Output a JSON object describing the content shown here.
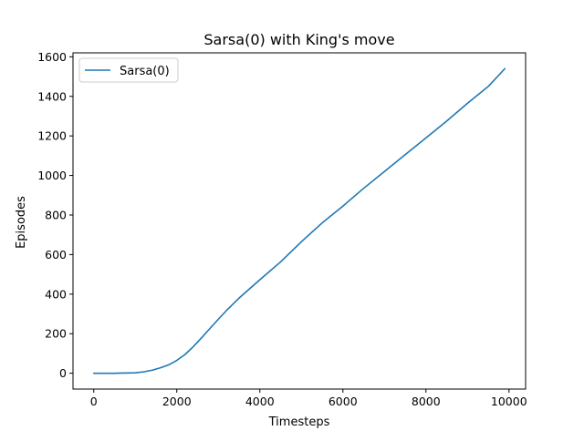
{
  "chart_data": {
    "type": "line",
    "title": "Sarsa(0) with King's move",
    "xlabel": "Timesteps",
    "ylabel": "Episodes",
    "xlim": [
      -500,
      10400
    ],
    "ylim": [
      -80,
      1620
    ],
    "xticks": [
      0,
      2000,
      4000,
      6000,
      8000,
      10000
    ],
    "yticks": [
      0,
      200,
      400,
      600,
      800,
      1000,
      1200,
      1400,
      1600
    ],
    "grid": false,
    "legend_position": "top-left",
    "series": [
      {
        "name": "Sarsa(0)",
        "color": "#1f77b4",
        "x": [
          0,
          500,
          1000,
          1200,
          1400,
          1600,
          1800,
          2000,
          2200,
          2400,
          2600,
          2800,
          3000,
          3200,
          3500,
          4000,
          4500,
          5000,
          5500,
          6000,
          6500,
          7000,
          7500,
          8000,
          8500,
          9000,
          9500,
          9900
        ],
        "y": [
          0,
          0,
          2,
          7,
          15,
          27,
          42,
          65,
          95,
          135,
          180,
          227,
          273,
          318,
          380,
          473,
          563,
          665,
          760,
          845,
          935,
          1020,
          1105,
          1190,
          1275,
          1365,
          1450,
          1540
        ]
      }
    ]
  }
}
